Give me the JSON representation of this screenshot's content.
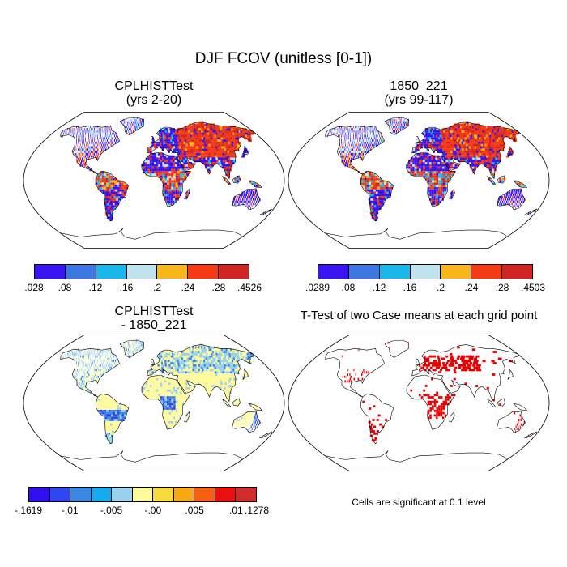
{
  "main_title": "DJF FCOV (unitless [0-1])",
  "panels": {
    "top_left": {
      "title_line1": "CPLHISTTest",
      "title_line2": "(yrs 2-20)"
    },
    "top_right": {
      "title_line1": "1850_221",
      "title_line2": "(yrs 99-117)"
    },
    "bottom_left": {
      "title_line1": "CPLHISTTest",
      "title_line2": "- 1850_221"
    },
    "bottom_right": {
      "title_line1": "T-Test of two Case means at each grid point"
    }
  },
  "colorbars": {
    "top_left": {
      "colors": [
        "#3a14f0",
        "#3c78e0",
        "#1ab8ea",
        "#bfe3ef",
        "#f7b61a",
        "#f53b15",
        "#d12424"
      ],
      "labels": [
        ".028",
        ".08",
        ".12",
        ".16",
        ".2",
        ".24",
        ".28",
        ".4526"
      ]
    },
    "top_right": {
      "colors": [
        "#3a14f0",
        "#3c78e0",
        "#1ab8ea",
        "#bfe3ef",
        "#f7b61a",
        "#f53b15",
        "#d12424"
      ],
      "labels": [
        ".0289",
        ".08",
        ".12",
        ".16",
        ".2",
        ".24",
        ".28",
        ".4503"
      ]
    },
    "bottom_left": {
      "colors": [
        "#3010ee",
        "#2e46f0",
        "#3c86e6",
        "#18aaee",
        "#9ad2ee",
        "#fffa9c",
        "#f7da3c",
        "#f7a815",
        "#f56012",
        "#ea1010",
        "#d12c2c"
      ],
      "labels": [
        "-.1619",
        "-.01",
        "-.005",
        "-.00",
        ".005",
        ".01",
        ".1278"
      ]
    }
  },
  "significance_note": "Cells are significant at 0.1 level",
  "map_colors": {
    "land_fcov": [
      "#3a14f0",
      "#f53b15",
      "#d12424",
      "#1ab8ea",
      "#bfe3ef",
      "#f7b61a"
    ],
    "diff_base": "#fffa9c",
    "diff_blue": [
      "#9ad2ee",
      "#3c86e6",
      "#2e46f0"
    ],
    "ttest_sig": "#e60000"
  }
}
